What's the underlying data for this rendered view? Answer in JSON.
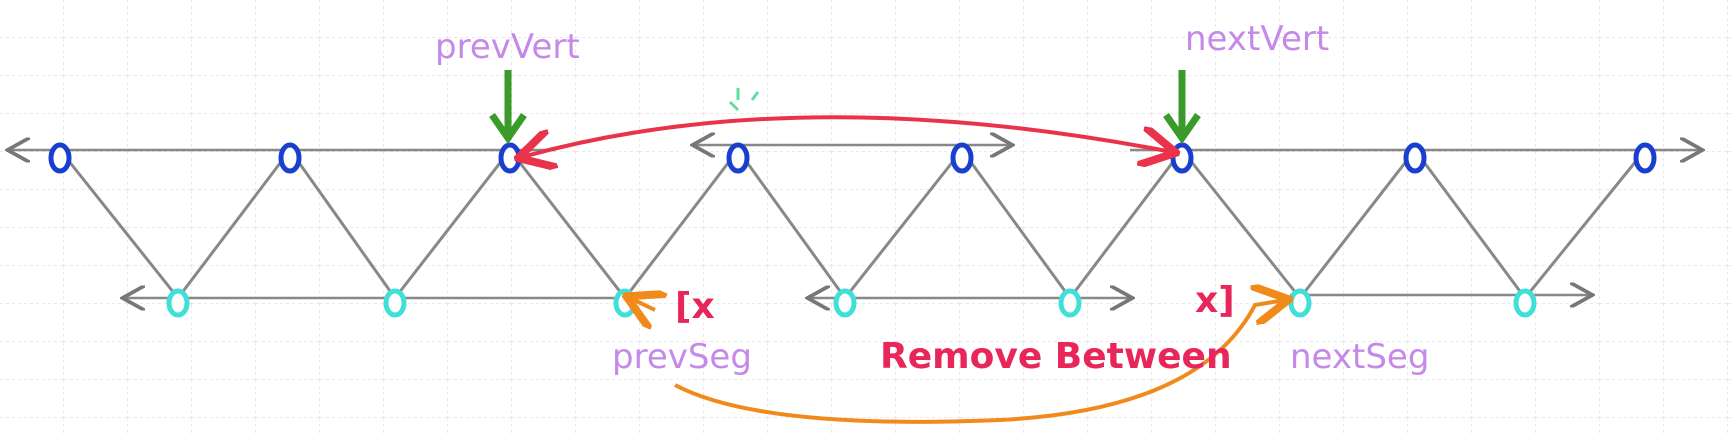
{
  "labels": {
    "prev_vert": "prevVert",
    "next_vert": "nextVert",
    "prev_seg": "prevSeg",
    "next_seg": "nextSeg",
    "remove_between": "Remove Between",
    "bracket_open": "[x",
    "bracket_close": "x]"
  }
}
